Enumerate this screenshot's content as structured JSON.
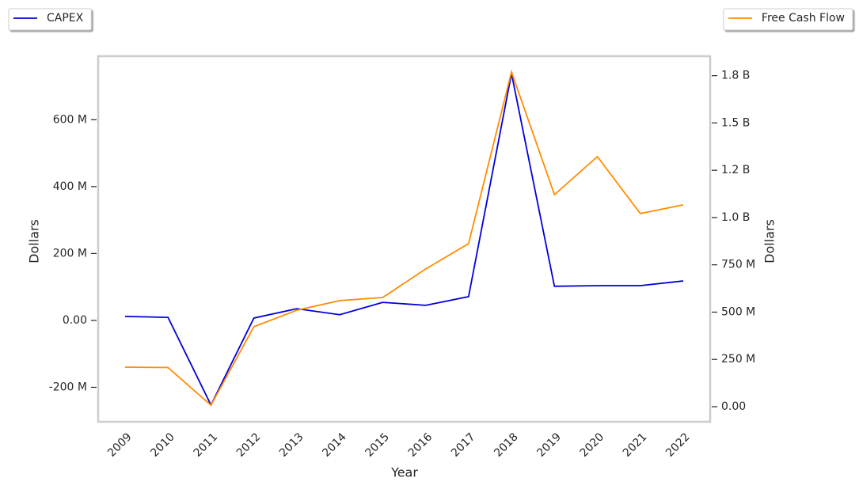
{
  "chart_data": {
    "type": "line",
    "categories": [
      "2009",
      "2010",
      "2011",
      "2012",
      "2013",
      "2014",
      "2015",
      "2016",
      "2017",
      "2018",
      "2019",
      "2020",
      "2021",
      "2022"
    ],
    "xlabel": "Year",
    "ylabel": "Dollars",
    "y2label": "Dollars",
    "ylim": [
      -303000000,
      790000000
    ],
    "yticks": [
      {
        "value": -200000000,
        "label": "-200 M"
      },
      {
        "value": 0,
        "label": "0.00"
      },
      {
        "value": 200000000,
        "label": "200 M"
      },
      {
        "value": 400000000,
        "label": "400 M"
      },
      {
        "value": 600000000,
        "label": "600 M"
      }
    ],
    "y2lim": [
      -79500000,
      1853000000
    ],
    "y2ticks": [
      {
        "value": 0,
        "label": "0.00"
      },
      {
        "value": 250000000,
        "label": "250 M"
      },
      {
        "value": 500000000,
        "label": "500 M"
      },
      {
        "value": 750000000,
        "label": "750 M"
      },
      {
        "value": 1000000000,
        "label": "1.0 B"
      },
      {
        "value": 1250000000,
        "label": "1.2 B"
      },
      {
        "value": 1500000000,
        "label": "1.5 B"
      },
      {
        "value": 1750000000,
        "label": "1.8 B"
      }
    ],
    "series": [
      {
        "name": "CAPEX",
        "color": "#0000dd",
        "axis": "y",
        "legend": "upper left",
        "values": [
          12000000,
          9000000,
          -253000000,
          7000000,
          35000000,
          17000000,
          54000000,
          45000000,
          71000000,
          738000000,
          102000000,
          104000000,
          104000000,
          118000000
        ]
      },
      {
        "name": "Free Cash Flow",
        "color": "#ff8c00",
        "axis": "y2",
        "legend": "upper right",
        "values": [
          209000000,
          207000000,
          8000000,
          423000000,
          510000000,
          561000000,
          577000000,
          728000000,
          862000000,
          1770000000,
          1121000000,
          1322000000,
          1021000000,
          1067000000
        ]
      }
    ]
  }
}
